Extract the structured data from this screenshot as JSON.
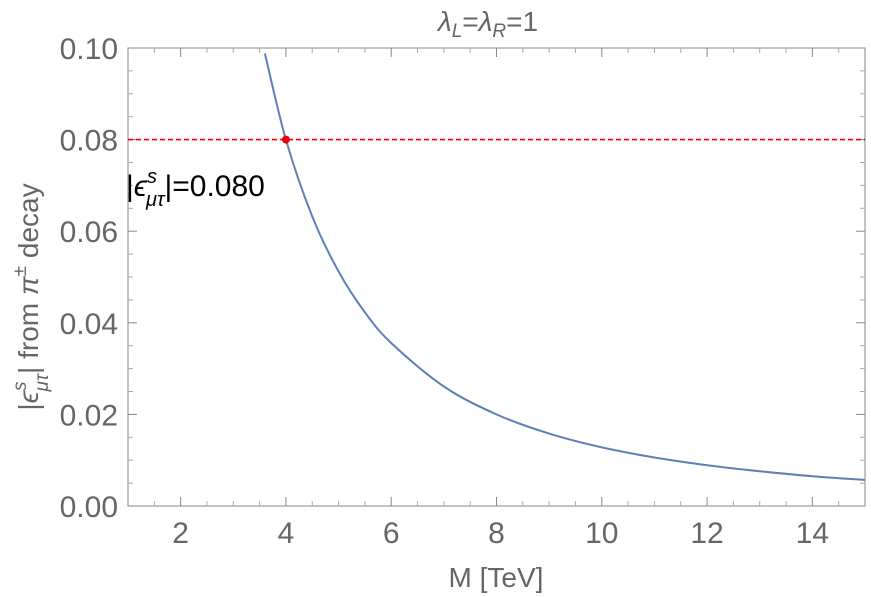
{
  "chart_data": {
    "type": "line",
    "title": {
      "base1": "λ",
      "sub1": "L",
      "eq": "=",
      "base2": "λ",
      "sub2": "R",
      "tail": "=1"
    },
    "xlabel": "M [TeV]",
    "ylabel": {
      "pre": "|",
      "sym": "ϵ",
      "sup": "s",
      "sub": "μτ",
      "post": "| from ",
      "pi": "π",
      "pm": "±",
      "tail": " decay"
    },
    "xlim": [
      1,
      15
    ],
    "ylim": [
      0,
      0.1
    ],
    "x_ticks": [
      2,
      4,
      6,
      8,
      10,
      12,
      14
    ],
    "x_tick_labels": [
      "2",
      "4",
      "6",
      "8",
      "10",
      "12",
      "14"
    ],
    "y_ticks": [
      0,
      0.02,
      0.04,
      0.06,
      0.08,
      0.1
    ],
    "y_tick_labels": [
      "0.00",
      "0.02",
      "0.04",
      "0.06",
      "0.08",
      "0.10"
    ],
    "series": [
      {
        "x": [
          3.6,
          4.0,
          4.5,
          5.0,
          5.5,
          6.0,
          7.0,
          8.0,
          9.0,
          10.0,
          11.0,
          12.0,
          13.0,
          14.0,
          15.0
        ],
        "y": [
          0.0988,
          0.08,
          0.0632,
          0.0512,
          0.0423,
          0.0356,
          0.0261,
          0.02,
          0.0158,
          0.0128,
          0.0106,
          0.0089,
          0.0076,
          0.0065,
          0.0057
        ],
        "color": "#5e81b5"
      }
    ],
    "reference_line": {
      "y": 0.08,
      "color": "#e8000b",
      "style": "dashed"
    },
    "marker": {
      "x": 4.0,
      "y": 0.08,
      "color": "#e8000b"
    },
    "annotation": {
      "pre": "|",
      "sym": "ϵ",
      "sup": "s",
      "sub": "μτ",
      "post": "|=0.080"
    },
    "grid": false
  }
}
